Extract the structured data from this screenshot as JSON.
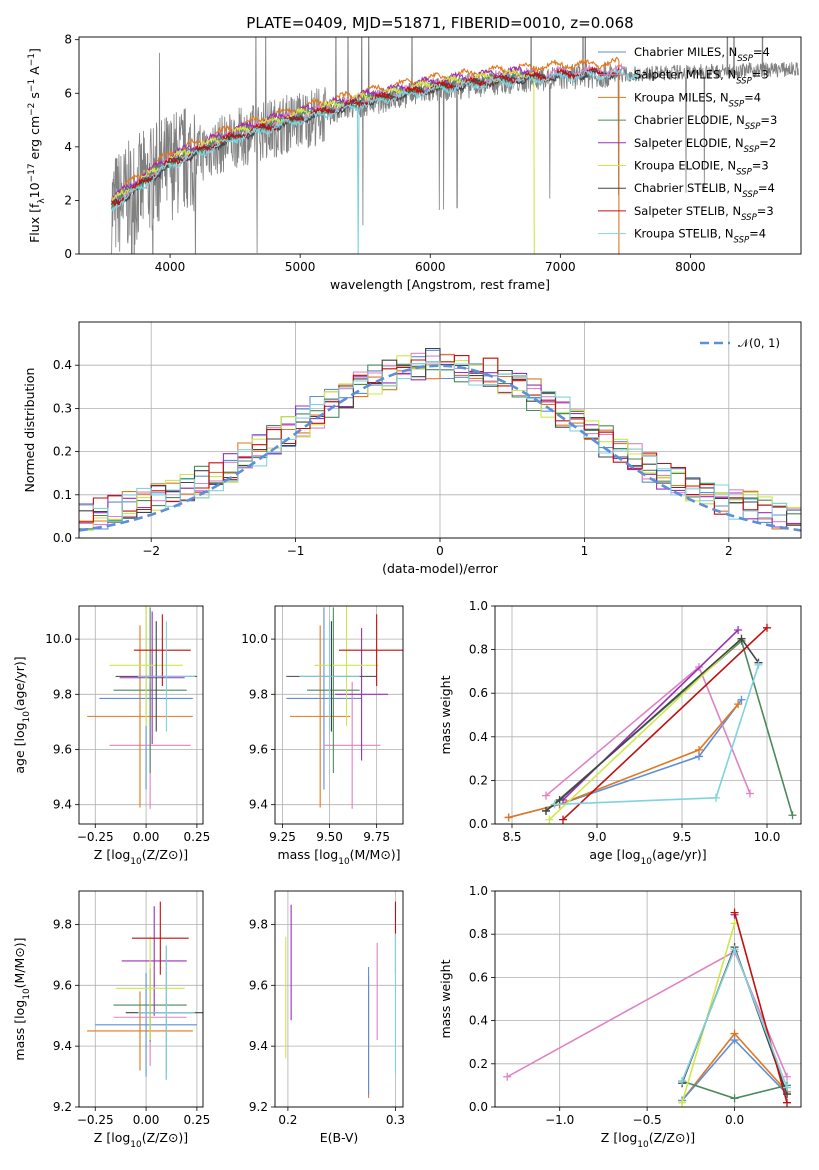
{
  "figure": {
    "title": "PLATE=0409, MJD=51871, FIBERID=0010, z=0.068"
  },
  "colors": {
    "Chabrier MILES": "#5b8fd9",
    "Salpeter MILES": "#e082c3",
    "Kroupa MILES": "#e0781f",
    "Chabrier ELODIE": "#4a8a5c",
    "Salpeter ELODIE": "#9b30b8",
    "Kroupa ELODIE": "#cde84a",
    "Chabrier STELIB": "#444444",
    "Salpeter STELIB": "#c01010",
    "Kroupa STELIB": "#7fd3df",
    "data": "#808080",
    "grid": "#b0b0b0",
    "gaussian": "#5b8fd9"
  },
  "chart_data": [
    {
      "id": "spectrum",
      "type": "line",
      "xlabel": "wavelength [Angstrom, rest frame]",
      "ylabel": "Flux [f_λ10^-17 erg cm^-2 s^-1 A^-1]",
      "xlim": [
        3300,
        8850
      ],
      "ylim": [
        0,
        8.1
      ],
      "xticks": [
        "4000",
        "5000",
        "6000",
        "7000",
        "8000"
      ],
      "yticks": [
        "0",
        "2",
        "4",
        "6",
        "8"
      ],
      "legend_position": "right",
      "legend": [
        {
          "model": "Chabrier MILES",
          "n": "4"
        },
        {
          "model": "Salpeter MILES",
          "n": "3"
        },
        {
          "model": "Kroupa MILES",
          "n": "4"
        },
        {
          "model": "Chabrier ELODIE",
          "n": "3"
        },
        {
          "model": "Salpeter ELODIE",
          "n": "2"
        },
        {
          "model": "Kroupa ELODIE",
          "n": "3"
        },
        {
          "model": "Chabrier STELIB",
          "n": "4"
        },
        {
          "model": "Salpeter STELIB",
          "n": "3"
        },
        {
          "model": "Kroupa STELIB",
          "n": "4"
        }
      ],
      "data_series": {
        "name": "data",
        "x_range": [
          3550,
          8830
        ],
        "continuum": [
          [
            3550,
            1.7
          ],
          [
            4000,
            3.3
          ],
          [
            4500,
            4.3
          ],
          [
            5000,
            5.0
          ],
          [
            5500,
            5.6
          ],
          [
            6000,
            6.1
          ],
          [
            6500,
            6.4
          ],
          [
            7000,
            6.6
          ],
          [
            7500,
            6.7
          ],
          [
            8000,
            6.8
          ],
          [
            8800,
            6.9
          ]
        ]
      },
      "model_series": [
        {
          "name": "Chabrier MILES",
          "x": [
            3550,
            7500
          ],
          "offset": 0.1
        },
        {
          "name": "Salpeter MILES",
          "x": [
            3550,
            7500
          ],
          "offset": 0.2
        },
        {
          "name": "Kroupa MILES",
          "x": [
            3550,
            7450
          ],
          "offset": 0.45
        },
        {
          "name": "Chabrier ELODIE",
          "x": [
            3550,
            6800
          ],
          "offset": 0.15
        },
        {
          "name": "Salpeter ELODIE",
          "x": [
            3550,
            6800
          ],
          "offset": 0.35
        },
        {
          "name": "Kroupa ELODIE",
          "x": [
            3550,
            6800
          ],
          "offset": 0.25
        },
        {
          "name": "Chabrier STELIB",
          "x": [
            3550,
            7450
          ],
          "offset": 0.05
        },
        {
          "name": "Salpeter STELIB",
          "x": [
            3550,
            7450
          ],
          "offset": 0.1
        },
        {
          "name": "Kroupa STELIB",
          "x": [
            3550,
            7600
          ],
          "offset": 0.0
        }
      ]
    },
    {
      "id": "residual_histogram",
      "type": "histogram",
      "xlabel": "(data-model)/error",
      "ylabel": "Normed distribution",
      "xlim": [
        -2.5,
        2.5
      ],
      "ylim": [
        0,
        0.5
      ],
      "xticks": [
        "−2",
        "−1",
        "0",
        "1",
        "2"
      ],
      "yticks": [
        "0.0",
        "0.1",
        "0.2",
        "0.3",
        "0.4"
      ],
      "legend_position": "top-right",
      "legend": [
        {
          "name": "𝒩(0, 1)"
        }
      ],
      "bin_width": 0.1,
      "reference_curve": {
        "name": "𝒩(0, 1)",
        "mean": 0,
        "sigma": 1
      }
    },
    {
      "id": "age_vs_Z",
      "type": "errorbar",
      "xlabel": "Z [log10(Z/Z⊙)]",
      "ylabel": "age  [log10(age/yr)]",
      "xlim": [
        -0.33,
        0.28
      ],
      "ylim": [
        9.33,
        10.12
      ],
      "xticks": [
        "−0.25",
        "0.00",
        "0.25"
      ],
      "yticks": [
        "9.4",
        "9.6",
        "9.8",
        "10.0"
      ],
      "points": [
        {
          "name": "Chabrier MILES",
          "x": 0.0,
          "xerr": 0.23,
          "y": 9.785,
          "yerr": 0.33
        },
        {
          "name": "Salpeter MILES",
          "x": 0.02,
          "xerr": 0.2,
          "y": 9.615,
          "yerr": 0.23
        },
        {
          "name": "Kroupa MILES",
          "x": -0.03,
          "xerr": 0.26,
          "y": 9.72,
          "yerr": 0.33
        },
        {
          "name": "Chabrier ELODIE",
          "x": 0.02,
          "xerr": 0.18,
          "y": 9.815,
          "yerr": 0.3
        },
        {
          "name": "Salpeter ELODIE",
          "x": 0.03,
          "xerr": 0.16,
          "y": 9.86,
          "yerr": 0.24
        },
        {
          "name": "Kroupa ELODIE",
          "x": 0.0,
          "xerr": 0.18,
          "y": 9.905,
          "yerr": 0.22
        },
        {
          "name": "Chabrier STELIB",
          "x": 0.05,
          "xerr": 0.2,
          "y": 9.865,
          "yerr": 0.2
        },
        {
          "name": "Salpeter STELIB",
          "x": 0.08,
          "xerr": 0.14,
          "y": 9.96,
          "yerr": 0.13
        },
        {
          "name": "Kroupa STELIB",
          "x": 0.1,
          "xerr": 0.14,
          "y": 9.865,
          "yerr": 0.2
        }
      ]
    },
    {
      "id": "age_vs_mass",
      "type": "errorbar",
      "xlabel": "mass [log10(M/M⊙)]",
      "ylabel": "",
      "xlim": [
        9.21,
        9.89
      ],
      "ylim": [
        9.33,
        10.12
      ],
      "xticks": [
        "9.25",
        "9.50",
        "9.75"
      ],
      "yticks": [
        "9.4",
        "9.6",
        "9.8",
        "10.0"
      ],
      "points": [
        {
          "name": "Chabrier MILES",
          "x": 9.47,
          "xerr": 0.2,
          "y": 9.785,
          "yerr": 0.33
        },
        {
          "name": "Salpeter MILES",
          "x": 9.62,
          "xerr": 0.15,
          "y": 9.615,
          "yerr": 0.23
        },
        {
          "name": "Kroupa MILES",
          "x": 9.45,
          "xerr": 0.16,
          "y": 9.72,
          "yerr": 0.33
        },
        {
          "name": "Chabrier ELODIE",
          "x": 9.52,
          "xerr": 0.14,
          "y": 9.815,
          "yerr": 0.3
        },
        {
          "name": "Salpeter ELODIE",
          "x": 9.67,
          "xerr": 0.14,
          "y": 9.8,
          "yerr": 0.24
        },
        {
          "name": "Kroupa ELODIE",
          "x": 9.59,
          "xerr": 0.17,
          "y": 9.905,
          "yerr": 0.22
        },
        {
          "name": "Chabrier STELIB",
          "x": 9.51,
          "xerr": 0.24,
          "y": 9.865,
          "yerr": 0.2
        },
        {
          "name": "Salpeter STELIB",
          "x": 9.75,
          "xerr": 0.2,
          "y": 9.96,
          "yerr": 0.13
        },
        {
          "name": "Kroupa STELIB",
          "x": 9.5,
          "xerr": 0.16,
          "y": 9.865,
          "yerr": 0.2
        }
      ]
    },
    {
      "id": "massweight_vs_age",
      "type": "line",
      "xlabel": "age  [log10(age/yr)]",
      "ylabel": "mass weight",
      "xlim": [
        8.4,
        10.2
      ],
      "ylim": [
        0,
        1.0
      ],
      "xticks": [
        "8.5",
        "9.0",
        "9.5",
        "10.0"
      ],
      "yticks": [
        "0.0",
        "0.2",
        "0.4",
        "0.6",
        "0.8",
        "1.0"
      ],
      "series": [
        {
          "name": "Chabrier MILES",
          "x": [
            8.48,
            8.78,
            9.6,
            9.85
          ],
          "y": [
            0.03,
            0.09,
            0.31,
            0.57
          ]
        },
        {
          "name": "Salpeter MILES",
          "x": [
            8.7,
            9.6,
            9.9
          ],
          "y": [
            0.13,
            0.72,
            0.14
          ]
        },
        {
          "name": "Kroupa MILES",
          "x": [
            8.48,
            8.78,
            9.6,
            9.83
          ],
          "y": [
            0.03,
            0.09,
            0.34,
            0.55
          ]
        },
        {
          "name": "Chabrier ELODIE",
          "x": [
            8.7,
            9.85,
            10.15
          ],
          "y": [
            0.06,
            0.84,
            0.04
          ]
        },
        {
          "name": "Salpeter ELODIE",
          "x": [
            8.8,
            9.83
          ],
          "y": [
            0.11,
            0.89
          ]
        },
        {
          "name": "Kroupa ELODIE",
          "x": [
            8.72,
            9.85
          ],
          "y": [
            0.02,
            0.85
          ]
        },
        {
          "name": "Chabrier STELIB",
          "x": [
            8.7,
            8.78,
            9.85,
            9.95
          ],
          "y": [
            0.06,
            0.11,
            0.85,
            0.74
          ]
        },
        {
          "name": "Salpeter STELIB",
          "x": [
            8.8,
            10.0
          ],
          "y": [
            0.02,
            0.9
          ]
        },
        {
          "name": "Kroupa STELIB",
          "x": [
            8.75,
            9.7,
            9.95
          ],
          "y": [
            0.09,
            0.12,
            0.73
          ]
        }
      ]
    },
    {
      "id": "mass_vs_Z",
      "type": "errorbar",
      "xlabel": "Z [log10(Z/Z⊙)]",
      "ylabel": "mass [log10(M/M⊙)]",
      "xlim": [
        -0.33,
        0.28
      ],
      "ylim": [
        9.2,
        9.91
      ],
      "xticks": [
        "−0.25",
        "0.00",
        "0.25"
      ],
      "yticks": [
        "9.2",
        "9.4",
        "9.6",
        "9.8"
      ],
      "points": [
        {
          "name": "Chabrier MILES",
          "x": 0.0,
          "xerr": 0.25,
          "y": 9.47,
          "yerr": 0.17
        },
        {
          "name": "Salpeter MILES",
          "x": 0.02,
          "xerr": 0.18,
          "y": 9.495,
          "yerr": 0.16
        },
        {
          "name": "Kroupa MILES",
          "x": -0.03,
          "xerr": 0.26,
          "y": 9.45,
          "yerr": 0.13
        },
        {
          "name": "Chabrier ELODIE",
          "x": 0.02,
          "xerr": 0.18,
          "y": 9.535,
          "yerr": 0.12
        },
        {
          "name": "Salpeter ELODIE",
          "x": 0.04,
          "xerr": 0.16,
          "y": 9.68,
          "yerr": 0.18
        },
        {
          "name": "Kroupa ELODIE",
          "x": 0.02,
          "xerr": 0.17,
          "y": 9.59,
          "yerr": 0.17
        },
        {
          "name": "Chabrier STELIB",
          "x": 0.1,
          "xerr": 0.2,
          "y": 9.51,
          "yerr": 0.22
        },
        {
          "name": "Salpeter STELIB",
          "x": 0.07,
          "xerr": 0.14,
          "y": 9.755,
          "yerr": 0.12
        },
        {
          "name": "Kroupa STELIB",
          "x": 0.1,
          "xerr": 0.14,
          "y": 9.51,
          "yerr": 0.22
        }
      ]
    },
    {
      "id": "mass_vs_ebv",
      "type": "errorbar",
      "xlabel": "E(B-V)",
      "ylabel": "",
      "xlim": [
        0.188,
        0.307
      ],
      "ylim": [
        9.2,
        9.91
      ],
      "xticks": [
        "0.2",
        "0.3"
      ],
      "yticks": [
        "9.2",
        "9.4",
        "9.6",
        "9.8"
      ],
      "points": [
        {
          "name": "Salpeter ELODIE",
          "x": 0.203,
          "y": 9.675,
          "yerr": 0.19
        },
        {
          "name": "Kroupa ELODIE",
          "x": 0.198,
          "y": 9.56,
          "yerr": 0.2
        },
        {
          "name": "Salpeter MILES",
          "x": 0.283,
          "y": 9.58,
          "yerr": 0.16
        },
        {
          "name": "Kroupa MILES",
          "x": 0.275,
          "y": 9.43,
          "yerr": 0.2
        },
        {
          "name": "Chabrier MILES",
          "x": 0.275,
          "y": 9.45,
          "yerr": 0.21
        },
        {
          "name": "Salpeter STELIB",
          "x": 0.3,
          "y": 9.755,
          "yerr": 0.12
        },
        {
          "name": "Kroupa STELIB",
          "x": 0.3,
          "y": 9.54,
          "yerr": 0.23
        }
      ]
    },
    {
      "id": "massweight_vs_Z",
      "type": "line",
      "xlabel": "Z [log10(Z/Z⊙)]",
      "ylabel": "mass weight",
      "xlim": [
        -1.37,
        0.38
      ],
      "ylim": [
        0,
        1.0
      ],
      "xticks": [
        "−1.0",
        "−0.5",
        "0.0"
      ],
      "yticks": [
        "0.0",
        "0.2",
        "0.4",
        "0.6",
        "0.8",
        "1.0"
      ],
      "series": [
        {
          "name": "Salpeter MILES",
          "x": [
            -1.3,
            0.0,
            0.3
          ],
          "y": [
            0.14,
            0.72,
            0.14
          ]
        },
        {
          "name": "Kroupa MILES",
          "x": [
            -0.3,
            0.0,
            0.3
          ],
          "y": [
            0.03,
            0.34,
            0.07
          ]
        },
        {
          "name": "Chabrier MILES",
          "x": [
            -0.3,
            0.0,
            0.3
          ],
          "y": [
            0.03,
            0.31,
            0.06
          ]
        },
        {
          "name": "Chabrier ELODIE",
          "x": [
            -0.3,
            0.0,
            0.3
          ],
          "y": [
            0.12,
            0.04,
            0.1
          ]
        },
        {
          "name": "Kroupa ELODIE",
          "x": [
            -0.3,
            0.0
          ],
          "y": [
            0.02,
            0.85
          ]
        },
        {
          "name": "Salpeter ELODIE",
          "x": [
            0.0
          ],
          "y": [
            0.89
          ]
        },
        {
          "name": "Chabrier STELIB",
          "x": [
            -0.3,
            0.0,
            0.3
          ],
          "y": [
            0.11,
            0.74,
            0.06
          ]
        },
        {
          "name": "Salpeter STELIB",
          "x": [
            0.0,
            0.3
          ],
          "y": [
            0.9,
            0.02
          ]
        },
        {
          "name": "Kroupa STELIB",
          "x": [
            -0.3,
            0.0,
            0.3
          ],
          "y": [
            0.12,
            0.73,
            0.09
          ]
        }
      ]
    }
  ]
}
